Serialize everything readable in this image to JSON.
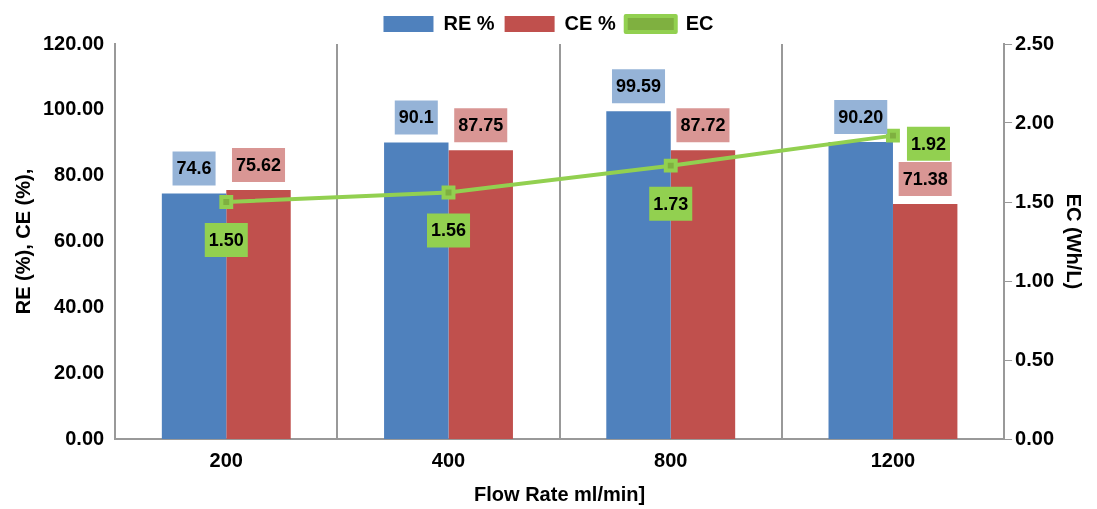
{
  "chart_data": {
    "type": "bar",
    "categories": [
      "200",
      "400",
      "800",
      "1200"
    ],
    "xlabel": "Flow Rate ml/min]",
    "ylabel": "RE (%), CE (%),",
    "y2label": "EC (Wh/L)",
    "series": [
      {
        "name": "RE %",
        "color": "#4f81bd",
        "values": [
          74.6,
          90.1,
          99.59,
          90.2
        ],
        "value_labels": [
          "74.6",
          "90.1",
          "99.59",
          "90.20"
        ]
      },
      {
        "name": "CE %",
        "color": "#c0504d",
        "values": [
          75.62,
          87.75,
          87.72,
          71.38
        ],
        "value_labels": [
          "75.62",
          "87.75",
          "87.72",
          "71.38"
        ]
      },
      {
        "name": "EC",
        "type": "line",
        "axis": "y2",
        "color": "#92d050",
        "values": [
          1.5,
          1.56,
          1.73,
          1.92
        ],
        "value_labels": [
          "1.50",
          "1.56",
          "1.73",
          "1.92"
        ]
      }
    ],
    "ylim": [
      0,
      120
    ],
    "yticks": [
      {
        "value": 0,
        "label": "0.00"
      },
      {
        "value": 20,
        "label": "20.00"
      },
      {
        "value": 40,
        "label": "40.00"
      },
      {
        "value": 60,
        "label": "60.00"
      },
      {
        "value": 80,
        "label": "80.00"
      },
      {
        "value": 100,
        "label": "100.00"
      },
      {
        "value": 120,
        "label": "120.00"
      }
    ],
    "y2lim": [
      0,
      2.5
    ],
    "y2ticks": [
      {
        "value": 0,
        "label": "0.00"
      },
      {
        "value": 0.5,
        "label": "0.50"
      },
      {
        "value": 1,
        "label": "1.00"
      },
      {
        "value": 1.5,
        "label": "1.50"
      },
      {
        "value": 2,
        "label": "2.00"
      },
      {
        "value": 2.5,
        "label": "2.50"
      }
    ],
    "grid": "x",
    "legend": "top",
    "marker": "square",
    "line_style": "solid"
  }
}
